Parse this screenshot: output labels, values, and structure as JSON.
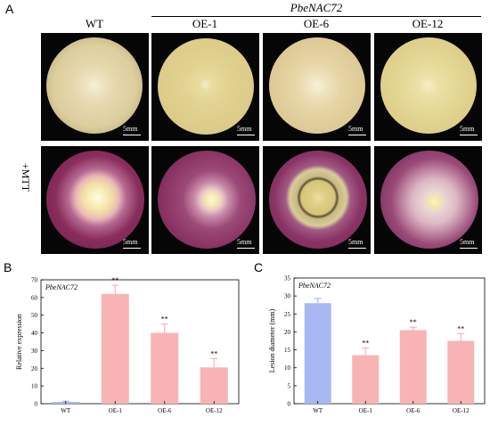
{
  "panel_letters": {
    "a": "A",
    "b": "B",
    "c": "C"
  },
  "panel_a": {
    "gene_header": "PbeNAC72",
    "columns": [
      "WT",
      "OE-1",
      "OE-6",
      "OE-12"
    ],
    "row2_label": "+MTT",
    "scale_label": "5mm"
  },
  "chart_data": [
    {
      "type": "bar",
      "panel": "B",
      "annotation": "PbeNAC72",
      "categories": [
        "WT",
        "OE-1",
        "OE-6",
        "OE-12"
      ],
      "values": [
        1,
        62,
        40,
        20.5
      ],
      "errors": [
        0.4,
        5,
        5,
        5
      ],
      "significance": [
        "",
        "**",
        "**",
        "**"
      ],
      "colors": [
        "#a9b8f2",
        "#f8b4b4",
        "#f8b4b4",
        "#f8b4b4"
      ],
      "ylabel": "Relative expression",
      "xlabel": "",
      "ylim": [
        0,
        70
      ],
      "yticks": [
        0,
        10,
        20,
        30,
        40,
        50,
        60,
        70
      ]
    },
    {
      "type": "bar",
      "panel": "C",
      "annotation": "PbeNAC72",
      "categories": [
        "WT",
        "OE-1",
        "OE-6",
        "OE-12"
      ],
      "values": [
        28,
        13.5,
        20.5,
        17.5
      ],
      "errors": [
        1.3,
        2,
        0.8,
        2
      ],
      "significance": [
        "",
        "**",
        "**",
        "**"
      ],
      "colors": [
        "#a9b8f2",
        "#f8b4b4",
        "#f8b4b4",
        "#f8b4b4"
      ],
      "ylabel": "Lesion diameter (mm)",
      "xlabel": "",
      "ylim": [
        0,
        35
      ],
      "yticks": [
        0,
        5,
        10,
        15,
        20,
        25,
        30,
        35
      ]
    }
  ]
}
